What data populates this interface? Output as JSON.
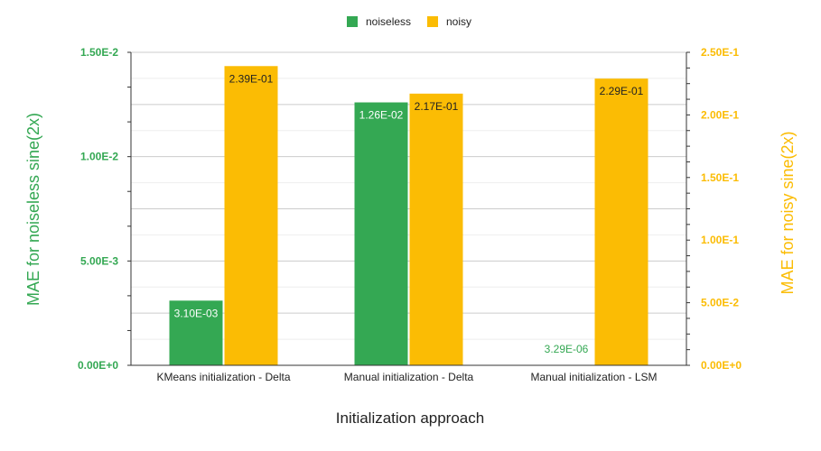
{
  "chart_data": {
    "type": "bar",
    "categories": [
      "KMeans initialization - Delta",
      "Manual initialization - Delta",
      "Manual initialization - LSM"
    ],
    "series": [
      {
        "name": "noiseless",
        "axis": "left",
        "color": "#34a853",
        "values": [
          0.0031,
          0.0126,
          3.29e-06
        ],
        "labels": [
          "3.10E-03",
          "1.26E-02",
          "3.29E-06"
        ]
      },
      {
        "name": "noisy",
        "axis": "right",
        "color": "#fbbc04",
        "values": [
          0.239,
          0.217,
          0.229
        ],
        "labels": [
          "2.39E-01",
          "2.17E-01",
          "2.29E-01"
        ]
      }
    ],
    "xlabel": "Initialization approach",
    "ylabel_left": "MAE for noiseless sine(2x)",
    "ylabel_right": "MAE for noisy sine(2x)",
    "ylim_left": [
      0,
      0.015
    ],
    "ylim_right": [
      0,
      0.25
    ],
    "yticks_left": [
      "0.00E+0",
      "5.00E-3",
      "1.00E-2",
      "1.50E-2"
    ],
    "yticks_right": [
      "0.00E+0",
      "5.00E-2",
      "1.00E-1",
      "1.50E-1",
      "2.00E-1",
      "2.50E-1"
    ],
    "legend_position": "top-center",
    "grid": true
  }
}
